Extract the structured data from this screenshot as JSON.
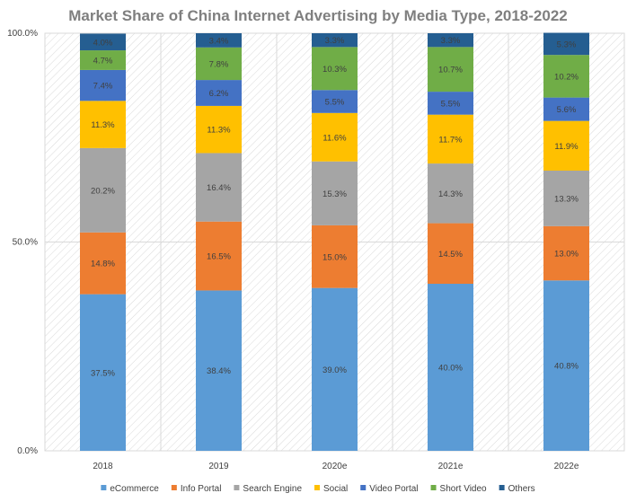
{
  "chart_data": {
    "type": "bar",
    "stacked": true,
    "title": "Market Share of China Internet Advertising by Media Type, 2018-2022",
    "categories": [
      "2018",
      "2019",
      "2020e",
      "2021e",
      "2022e"
    ],
    "y_ticks": [
      "0.0%",
      "50.0%",
      "100.0%"
    ],
    "ylim": [
      0,
      100
    ],
    "grid": true,
    "legend_position": "bottom",
    "series": [
      {
        "name": "eCommerce",
        "color": "#5b9bd5",
        "values": [
          37.5,
          38.4,
          39.0,
          40.0,
          40.8
        ],
        "labels": [
          "37.5%",
          "38.4%",
          "39.0%",
          "40.0%",
          "40.8%"
        ]
      },
      {
        "name": "Info Portal",
        "color": "#ed7d31",
        "values": [
          14.8,
          16.5,
          15.0,
          14.5,
          13.0
        ],
        "labels": [
          "14.8%",
          "16.5%",
          "15.0%",
          "14.5%",
          "13.0%"
        ]
      },
      {
        "name": "Search Engine",
        "color": "#a5a5a5",
        "values": [
          20.2,
          16.4,
          15.3,
          14.3,
          13.3
        ],
        "labels": [
          "20.2%",
          "16.4%",
          "15.3%",
          "14.3%",
          "13.3%"
        ]
      },
      {
        "name": "Social",
        "color": "#ffc000",
        "values": [
          11.3,
          11.3,
          11.6,
          11.7,
          11.9
        ],
        "labels": [
          "11.3%",
          "11.3%",
          "11.6%",
          "11.7%",
          "11.9%"
        ]
      },
      {
        "name": "Video Portal",
        "color": "#4472c4",
        "values": [
          7.4,
          6.2,
          5.5,
          5.5,
          5.6
        ],
        "labels": [
          "7.4%",
          "6.2%",
          "5.5%",
          "5.5%",
          "5.6%"
        ]
      },
      {
        "name": "Short Video",
        "color": "#70ad47",
        "values": [
          4.7,
          7.8,
          10.3,
          10.7,
          10.2
        ],
        "labels": [
          "4.7%",
          "7.8%",
          "10.3%",
          "10.7%",
          "10.2%"
        ]
      },
      {
        "name": "Others",
        "color": "#255e91",
        "values": [
          4.0,
          3.4,
          3.3,
          3.3,
          5.3
        ],
        "labels": [
          "4.0%",
          "3.4%",
          "3.3%",
          "3.3%",
          "5.3%"
        ]
      }
    ]
  }
}
